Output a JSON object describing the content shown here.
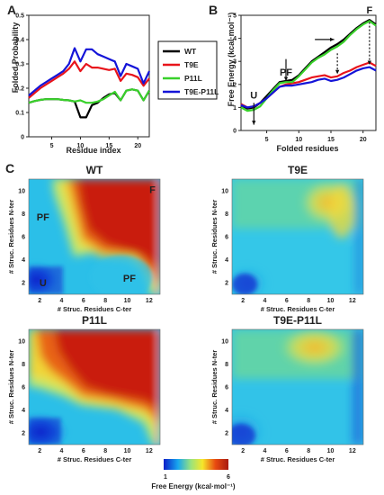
{
  "panels": {
    "a": "A",
    "b": "B",
    "c": "C"
  },
  "colors": {
    "WT": "#000000",
    "T9E": "#e8141b",
    "P11L": "#39d12b",
    "T9E-P11L": "#1414d8"
  },
  "chart_data": [
    {
      "type": "line",
      "panel": "A",
      "xlabel": "Residue index",
      "ylabel": "Folded Probability",
      "xlim": [
        1,
        22
      ],
      "ylim": [
        0,
        0.5
      ],
      "xticks": [
        5,
        10,
        15,
        20
      ],
      "yticks": [
        0,
        0.1,
        0.2,
        0.3,
        0.4,
        0.5
      ],
      "yticklabels": [
        "0",
        "0.1",
        "0.2",
        "0.3",
        "0.4",
        "0.5"
      ],
      "x": [
        1,
        2,
        3,
        4,
        5,
        6,
        7,
        8,
        9,
        10,
        11,
        12,
        13,
        14,
        15,
        16,
        17,
        18,
        19,
        20,
        21,
        22
      ],
      "series": [
        {
          "name": "WT",
          "values": [
            0.14,
            0.147,
            0.152,
            0.155,
            0.155,
            0.155,
            0.152,
            0.15,
            0.145,
            0.08,
            0.08,
            0.13,
            0.14,
            0.16,
            0.175,
            0.18,
            0.15,
            0.19,
            0.195,
            0.19,
            0.15,
            0.19
          ]
        },
        {
          "name": "T9E",
          "values": [
            0.16,
            0.18,
            0.2,
            0.215,
            0.23,
            0.245,
            0.26,
            0.28,
            0.31,
            0.27,
            0.3,
            0.285,
            0.285,
            0.28,
            0.275,
            0.28,
            0.23,
            0.26,
            0.255,
            0.245,
            0.21,
            0.24
          ]
        },
        {
          "name": "P11L",
          "values": [
            0.14,
            0.147,
            0.152,
            0.155,
            0.155,
            0.155,
            0.152,
            0.15,
            0.145,
            0.15,
            0.14,
            0.14,
            0.145,
            0.155,
            0.17,
            0.185,
            0.15,
            0.19,
            0.195,
            0.19,
            0.15,
            0.19
          ]
        },
        {
          "name": "T9E-P11L",
          "values": [
            0.17,
            0.19,
            0.21,
            0.225,
            0.24,
            0.255,
            0.27,
            0.3,
            0.365,
            0.31,
            0.36,
            0.36,
            0.34,
            0.33,
            0.32,
            0.31,
            0.25,
            0.3,
            0.29,
            0.28,
            0.22,
            0.27
          ]
        }
      ],
      "legend": {
        "position": "right",
        "entries": [
          "WT",
          "T9E",
          "P11L",
          "T9E-P11L"
        ]
      }
    },
    {
      "type": "line",
      "panel": "B",
      "xlabel": "Folded residues",
      "ylabel": "Free Energy (kcal·mol⁻¹)",
      "xlim": [
        1,
        22
      ],
      "ylim": [
        0,
        5
      ],
      "xticks": [
        5,
        10,
        15,
        20
      ],
      "yticks": [
        0,
        1,
        2,
        3,
        4,
        5
      ],
      "x": [
        1,
        2,
        3,
        4,
        5,
        6,
        7,
        8,
        9,
        10,
        11,
        12,
        13,
        14,
        15,
        16,
        17,
        18,
        19,
        20,
        21,
        22
      ],
      "series": [
        {
          "name": "WT",
          "values": [
            1.1,
            0.95,
            1.0,
            1.2,
            1.5,
            1.8,
            2.1,
            2.15,
            2.2,
            2.4,
            2.7,
            3.0,
            3.2,
            3.4,
            3.6,
            3.75,
            3.95,
            4.2,
            4.45,
            4.65,
            4.8,
            4.6
          ]
        },
        {
          "name": "T9E",
          "values": [
            1.15,
            1.0,
            1.05,
            1.2,
            1.4,
            1.65,
            1.9,
            2.0,
            2.05,
            2.1,
            2.2,
            2.3,
            2.35,
            2.4,
            2.3,
            2.35,
            2.5,
            2.6,
            2.75,
            2.85,
            2.95,
            2.8
          ]
        },
        {
          "name": "P11L",
          "values": [
            1.0,
            0.85,
            0.9,
            1.05,
            1.4,
            1.75,
            2.05,
            2.1,
            2.1,
            2.35,
            2.65,
            2.95,
            3.15,
            3.3,
            3.5,
            3.65,
            3.85,
            4.15,
            4.4,
            4.6,
            4.75,
            4.55
          ]
        },
        {
          "name": "T9E-P11L",
          "values": [
            1.1,
            1.0,
            1.05,
            1.2,
            1.4,
            1.65,
            1.9,
            1.95,
            1.95,
            2.0,
            2.05,
            2.1,
            2.2,
            2.25,
            2.15,
            2.2,
            2.3,
            2.45,
            2.6,
            2.7,
            2.75,
            2.6
          ]
        }
      ],
      "annotations": [
        {
          "text": "U",
          "x": 3,
          "y": 1.3
        },
        {
          "text": "PF",
          "x": 8,
          "y": 2.3
        },
        {
          "text": "F",
          "x": 21,
          "y": 5.0
        }
      ]
    },
    {
      "type": "heatmap",
      "panel": "C",
      "xlabel": "# Struc. Residues C-ter",
      "ylabel": "# Struc. Residues N-ter",
      "xlim": [
        1,
        13
      ],
      "ylim": [
        1,
        11
      ],
      "xticks": [
        2,
        4,
        6,
        8,
        10,
        12
      ],
      "yticks": [
        2,
        4,
        6,
        8,
        10
      ],
      "colorbar": {
        "min": 1,
        "max": 6,
        "label": "Free Energy (kcal·mol⁻¹)",
        "ticks": [
          "1",
          "6"
        ]
      },
      "maps": [
        {
          "title": "WT",
          "labels": [
            {
              "text": "F",
              "x": 12.3,
              "y": 10.1
            },
            {
              "text": "PF",
              "x": 2.3,
              "y": 7.7
            },
            {
              "text": "PF",
              "x": 10.2,
              "y": 2.4
            },
            {
              "text": "U",
              "x": 2.3,
              "y": 2.0
            }
          ]
        },
        {
          "title": "T9E",
          "labels": []
        },
        {
          "title": "P11L",
          "labels": []
        },
        {
          "title": "T9E-P11L",
          "labels": []
        }
      ]
    }
  ]
}
